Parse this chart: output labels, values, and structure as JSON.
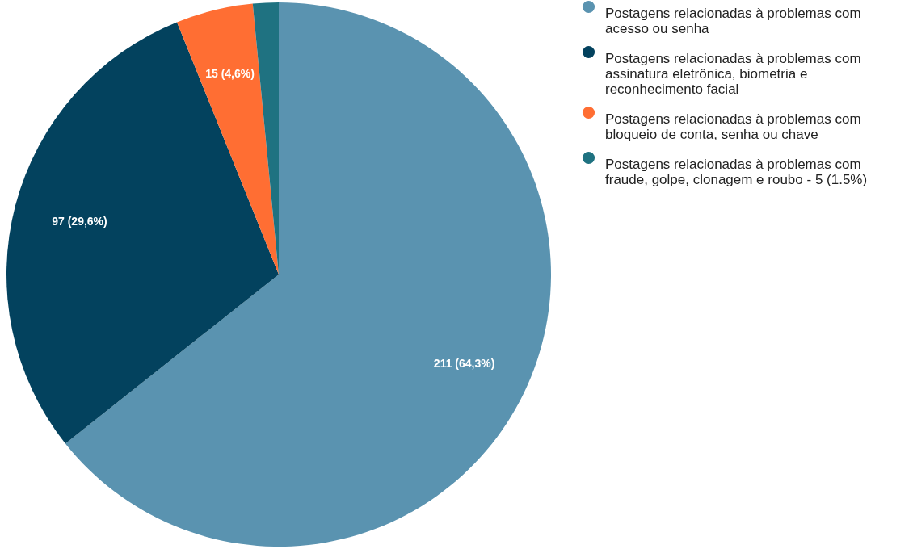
{
  "chart_data": {
    "type": "pie",
    "categories": [
      "Postagens relacionadas à problemas com acesso ou senha",
      "Postagens relacionadas à problemas com assinatura eletrônica, biometria e reconhecimento facial",
      "Postagens relacionadas à problemas com bloqueio de conta, senha ou chave",
      "Postagens relacionadas à problemas com fraude, golpe, clonagem e roubo - 5 (1.5%)"
    ],
    "values": [
      211,
      97,
      15,
      5
    ],
    "value_labels": [
      "211 (64,3%)",
      "97 (29,6%)",
      "15 (4,6%)",
      null
    ],
    "colors": [
      "#5a93b0",
      "#03425e",
      "#ff6e33",
      "#1f7281"
    ],
    "legend": "top right"
  }
}
